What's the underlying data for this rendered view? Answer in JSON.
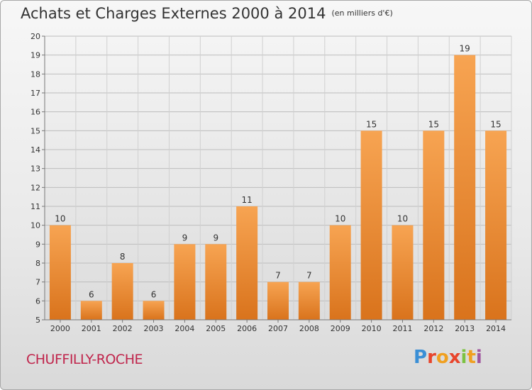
{
  "title": "Achats et Charges Externes 2000 à 2014",
  "unit_label": "(en milliers d'€)",
  "town": "CHUFFILLY-ROCHE",
  "brand": {
    "letters": [
      "P",
      "r",
      "o",
      "x",
      "i",
      "t",
      "i"
    ]
  },
  "colors": {
    "bar": "#f0943a",
    "bar_dark": "#d9741e",
    "town": "#c0244b"
  },
  "chart_data": {
    "type": "bar",
    "title": "Achats et Charges Externes 2000 à 2014",
    "subtitle": "(en milliers d'€)",
    "categories": [
      "2000",
      "2001",
      "2002",
      "2003",
      "2004",
      "2005",
      "2006",
      "2007",
      "2008",
      "2009",
      "2010",
      "2011",
      "2012",
      "2013",
      "2014"
    ],
    "values": [
      10,
      6,
      8,
      6,
      9,
      9,
      11,
      7,
      7,
      10,
      15,
      10,
      15,
      19,
      15
    ],
    "ylim": [
      5,
      20
    ],
    "yticks": [
      5,
      6,
      7,
      8,
      9,
      10,
      11,
      12,
      13,
      14,
      15,
      16,
      17,
      18,
      19,
      20
    ],
    "grid": true,
    "legend": "none"
  }
}
